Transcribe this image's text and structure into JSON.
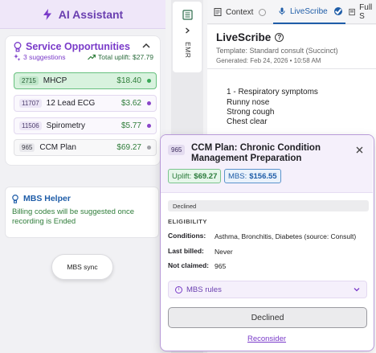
{
  "assistant": {
    "title": "AI Assistant"
  },
  "service": {
    "title": "Service Opportunities",
    "suggestions": "3 suggestions",
    "uplift": "Total uplift: $27.79",
    "items": [
      {
        "code": "2715",
        "name": "MHCP",
        "amount": "$18.40",
        "dot": "#3aa857",
        "state": "active"
      },
      {
        "code": "11707",
        "name": "12 Lead ECG",
        "amount": "$3.62",
        "dot": "#8a45c9",
        "state": "suggested"
      },
      {
        "code": "11506",
        "name": "Spirometry",
        "amount": "$5.77",
        "dot": "#8a45c9",
        "state": "suggested"
      },
      {
        "code": "965",
        "name": "CCM Plan",
        "amount": "$69.27",
        "dot": "#a0a0a6",
        "state": "plain"
      }
    ]
  },
  "mbs_helper": {
    "title": "MBS Helper",
    "desc": "Billing codes will be suggested once recording is Ended"
  },
  "mbs_sync": "MBS sync",
  "emr": {
    "label": "EMR"
  },
  "tabs": {
    "context": "Context",
    "livescribe": "LiveScribe",
    "full": "Full S"
  },
  "livescribe": {
    "title": "LiveScribe",
    "template": "Template: Standard consult (Succinct)",
    "generated": "Generated: Feb 24, 2026 • 10:58 AM",
    "lines": [
      "1 - Respiratory symptoms",
      "Runny nose",
      "Strong cough",
      "Chest clear"
    ]
  },
  "popup": {
    "code": "965",
    "title": "CCM Plan: Chronic Condition Management Preparation",
    "uplift_label": "Uplift:",
    "uplift_value": "$69.27",
    "mbs_label": "MBS:",
    "mbs_value": "$156.55",
    "status": "Declined",
    "eligibility": "ELIGIBILITY",
    "conditions_k": "Conditions:",
    "conditions_v": "Asthma, Bronchitis, Diabetes (source: Consult)",
    "last_billed_k": "Last billed:",
    "last_billed_v": "Never",
    "not_claimed_k": "Not claimed:",
    "not_claimed_v": "965",
    "rules": "MBS rules",
    "declined_button": "Declined",
    "reconsider": "Reconsider"
  },
  "colors": {
    "accent": "#7a3bc9",
    "green": "#2f7d3a",
    "blue": "#1f5da8"
  }
}
